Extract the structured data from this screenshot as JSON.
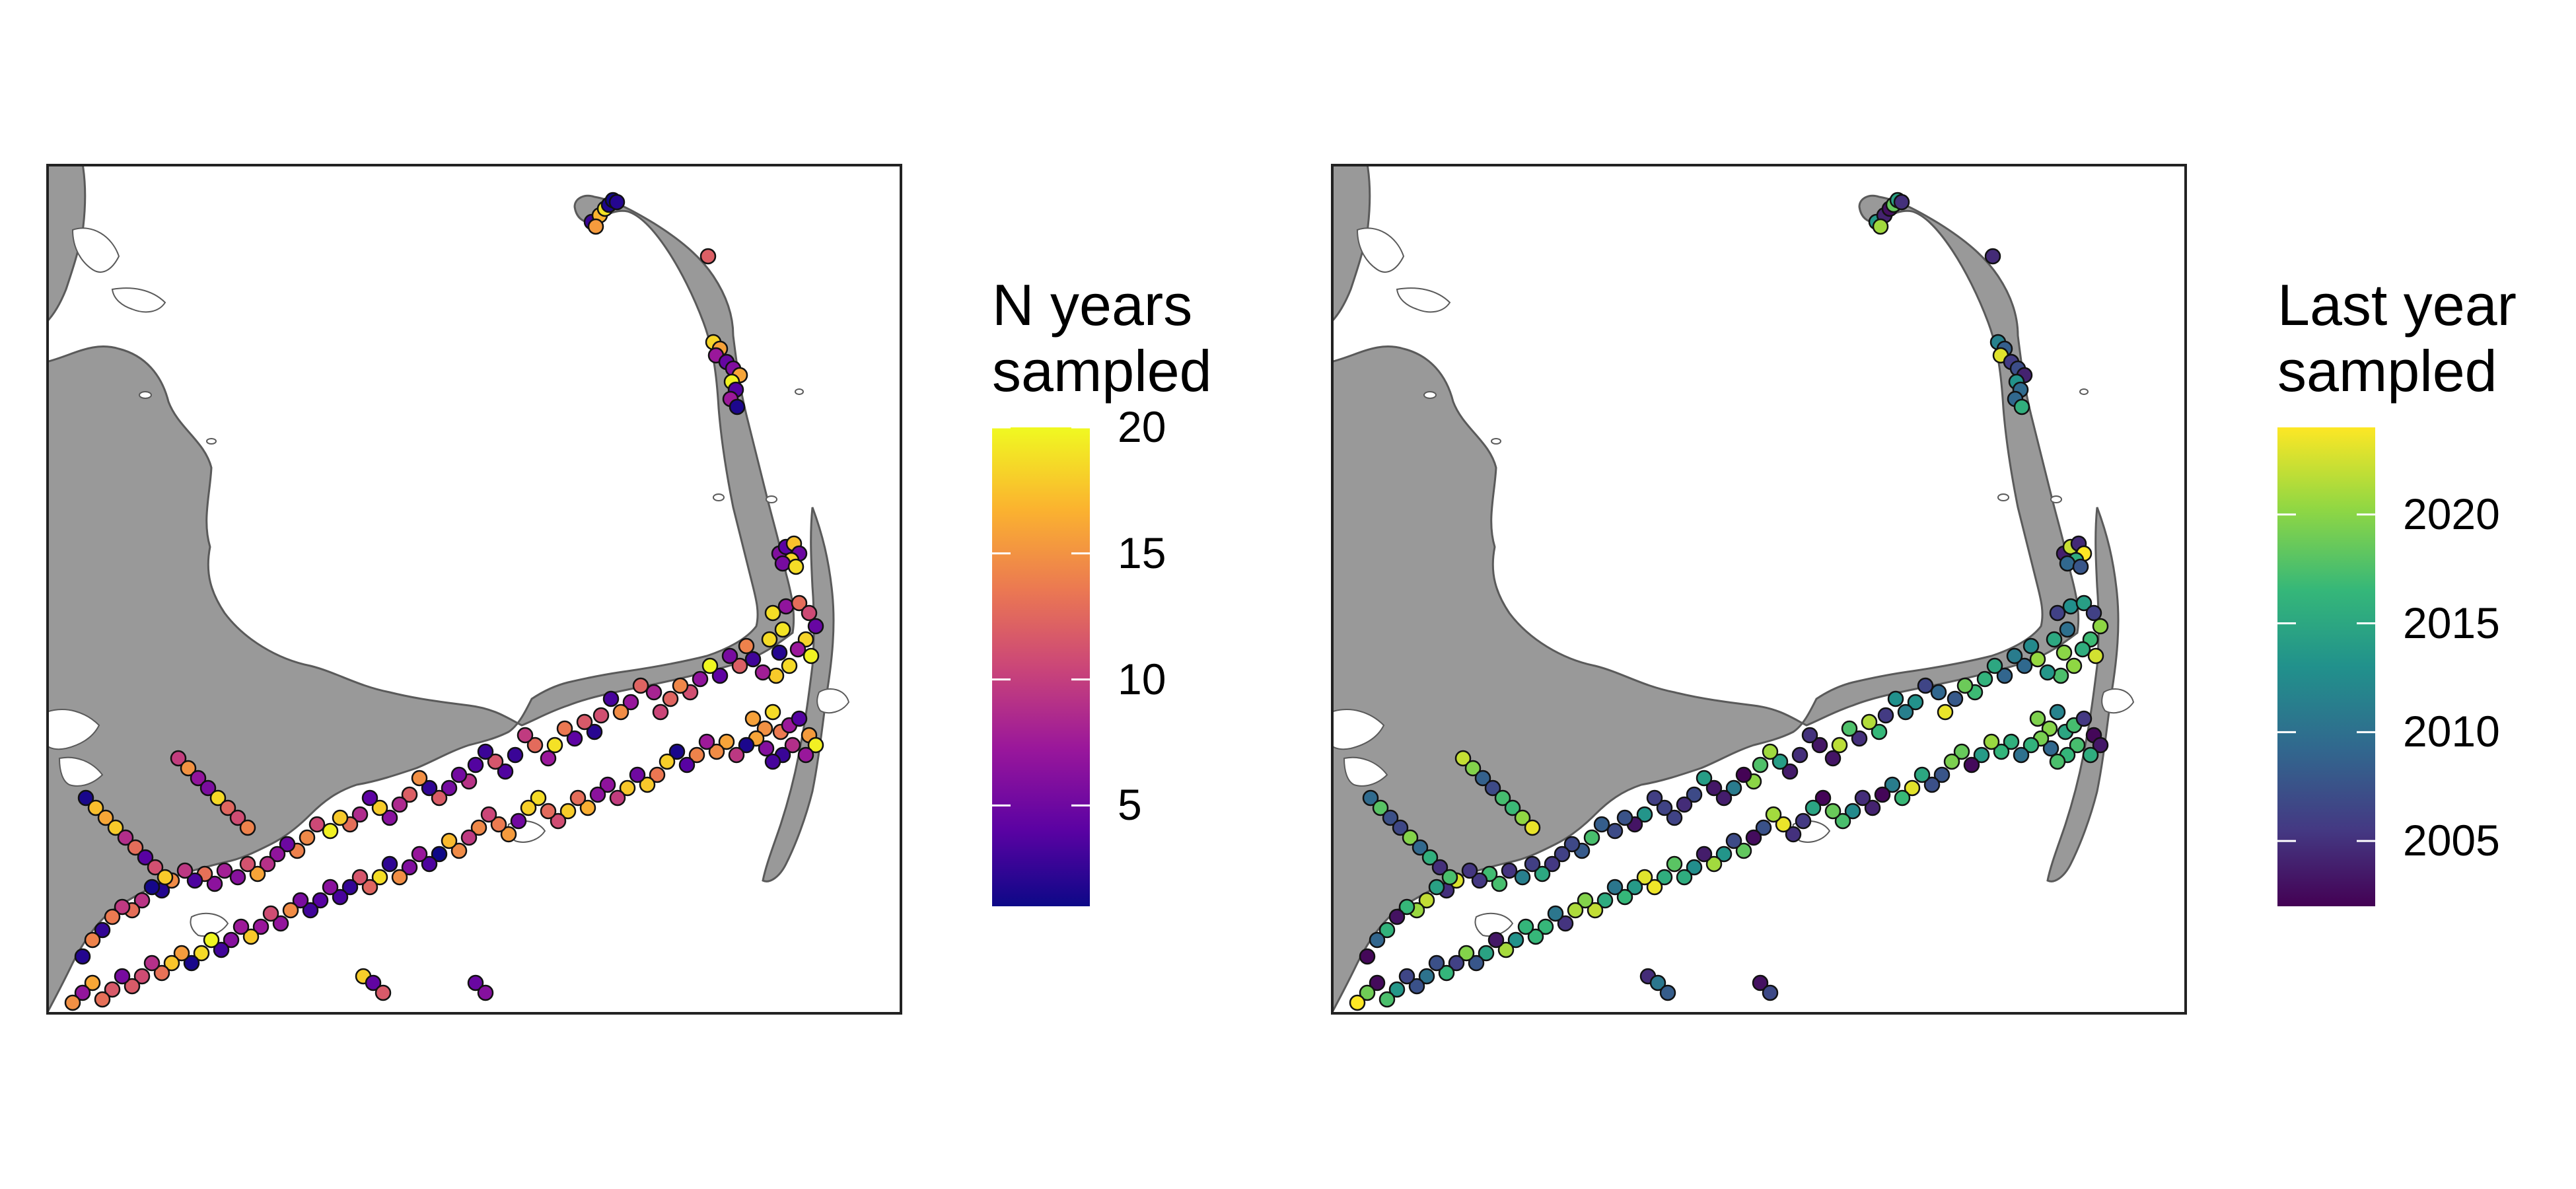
{
  "maps": [
    {
      "id": "n_years",
      "legend_title_lines": [
        "N years",
        "sampled"
      ],
      "legend_ticks": [
        "5",
        "10",
        "15",
        "20"
      ],
      "legend_tick_values": [
        5,
        10,
        15,
        20
      ],
      "value_range": [
        1,
        20
      ],
      "colormap": "plasma",
      "colors": [
        "#0d0887",
        "#5b02a3",
        "#9a179b",
        "#cb4678",
        "#eb7852",
        "#fbb32f",
        "#f0f921"
      ]
    },
    {
      "id": "last_year",
      "legend_title_lines": [
        "Last year",
        "sampled"
      ],
      "legend_ticks": [
        "2005",
        "2010",
        "2015",
        "2020"
      ],
      "legend_tick_values": [
        2005,
        2010,
        2015,
        2020
      ],
      "value_range": [
        2002,
        2024
      ],
      "colormap": "viridis",
      "colors": [
        "#440154",
        "#443983",
        "#31688e",
        "#21918c",
        "#35b779",
        "#90d743",
        "#fde725"
      ]
    }
  ],
  "land_color": "#999999",
  "water_color": "#ffffff"
}
